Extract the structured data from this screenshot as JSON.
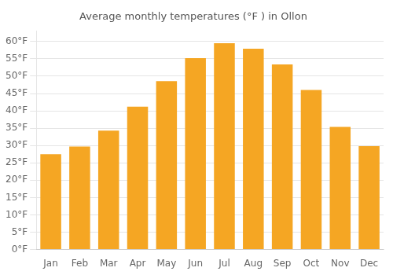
{
  "chart_data": {
    "type": "bar",
    "title": "Average monthly temperatures (°F ) in Ollon",
    "categories": [
      "Jan",
      "Feb",
      "Mar",
      "Apr",
      "May",
      "Jun",
      "Jul",
      "Aug",
      "Sep",
      "Oct",
      "Nov",
      "Dec"
    ],
    "values": [
      27.5,
      29.7,
      34.3,
      41.2,
      48.6,
      55.2,
      59.5,
      57.9,
      53.4,
      46.0,
      35.4,
      29.8
    ],
    "color": "#F5A623",
    "ylim": [
      0,
      63
    ],
    "yticks": [
      {
        "value": 0,
        "label": "0°F"
      },
      {
        "value": 5,
        "label": "5°F"
      },
      {
        "value": 10,
        "label": "10°F"
      },
      {
        "value": 15,
        "label": "15°F"
      },
      {
        "value": 20,
        "label": "20°F"
      },
      {
        "value": 25,
        "label": "25°F"
      },
      {
        "value": 30,
        "label": "30°F"
      },
      {
        "value": 35,
        "label": "35°F"
      },
      {
        "value": 40,
        "label": "40°F"
      },
      {
        "value": 45,
        "label": "45°F"
      },
      {
        "value": 50,
        "label": "50°F"
      },
      {
        "value": 55,
        "label": "55°F"
      },
      {
        "value": 60,
        "label": "60°F"
      }
    ],
    "grid": true
  }
}
